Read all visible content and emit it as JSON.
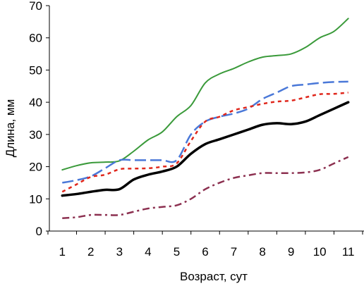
{
  "chart_data": {
    "type": "line",
    "xlabel": "Возраст, сут",
    "ylabel": "Длина, мм",
    "xlim": [
      0.55,
      11.55
    ],
    "ylim": [
      0,
      70
    ],
    "xticks": [
      1,
      2,
      3,
      4,
      5,
      6,
      7,
      8,
      9,
      10,
      11
    ],
    "yticks": [
      0,
      10,
      20,
      30,
      40,
      50,
      60,
      70
    ],
    "grid": false,
    "legend": "none",
    "series": [
      {
        "style": "solid",
        "color": "#3a9a3a",
        "x": [
          1,
          1.5,
          2,
          2.5,
          3,
          3.5,
          4,
          4.5,
          5,
          5.5,
          6,
          6.5,
          7,
          7.5,
          8,
          8.5,
          9,
          9.5,
          10,
          10.5,
          11
        ],
        "values": [
          19,
          20.3,
          21.2,
          21.4,
          21.8,
          24.8,
          28.3,
          30.8,
          35.5,
          39,
          46,
          48.8,
          50.5,
          52.5,
          54,
          54.5,
          55,
          57,
          60,
          62,
          66
        ]
      },
      {
        "style": "long-dash",
        "color": "#4a78d8",
        "x": [
          1,
          1.5,
          2,
          2.5,
          3,
          3.5,
          4,
          4.5,
          5,
          5.5,
          6,
          6.5,
          7,
          7.5,
          8,
          8.5,
          9,
          9.5,
          10,
          10.5,
          11
        ],
        "values": [
          15,
          15.8,
          17,
          19.5,
          22,
          22,
          22,
          22,
          22,
          30,
          34,
          35.5,
          36.5,
          38,
          41,
          43,
          45,
          45.5,
          46,
          46.3,
          46.4
        ]
      },
      {
        "style": "dotted",
        "color": "#e0271c",
        "x": [
          1,
          1.5,
          2,
          2.5,
          3,
          3.5,
          4,
          4.5,
          5,
          5.5,
          6,
          6.5,
          7,
          7.5,
          8,
          8.5,
          9,
          9.5,
          10,
          10.5,
          11
        ],
        "values": [
          12.2,
          14.5,
          16.8,
          17.5,
          19.2,
          19.4,
          19.5,
          20,
          21,
          28,
          34,
          35.5,
          37.5,
          38.5,
          39.5,
          40.2,
          40.5,
          41.5,
          42.5,
          42.6,
          43
        ]
      },
      {
        "style": "solid-thick",
        "color": "#000000",
        "x": [
          1,
          1.5,
          2,
          2.5,
          3,
          3.5,
          4,
          4.5,
          5,
          5.5,
          6,
          6.5,
          7,
          7.5,
          8,
          8.5,
          9,
          9.5,
          10,
          10.5,
          11
        ],
        "values": [
          11,
          11.5,
          12.2,
          12.8,
          13,
          16,
          17.5,
          18.5,
          20,
          24,
          27,
          28.5,
          30,
          31.5,
          33,
          33.5,
          33.2,
          34,
          36,
          38,
          40
        ]
      },
      {
        "style": "dash-dot",
        "color": "#8c3050",
        "x": [
          1,
          1.5,
          2,
          2.5,
          3,
          3.5,
          4,
          4.5,
          5,
          5.5,
          6,
          6.5,
          7,
          7.5,
          8,
          8.5,
          9,
          9.5,
          10,
          10.5,
          11
        ],
        "values": [
          4,
          4.3,
          5,
          5,
          5,
          6,
          7,
          7.5,
          8,
          10,
          13,
          15,
          16.5,
          17.3,
          18,
          18,
          18,
          18.2,
          19,
          21,
          23
        ]
      }
    ]
  }
}
